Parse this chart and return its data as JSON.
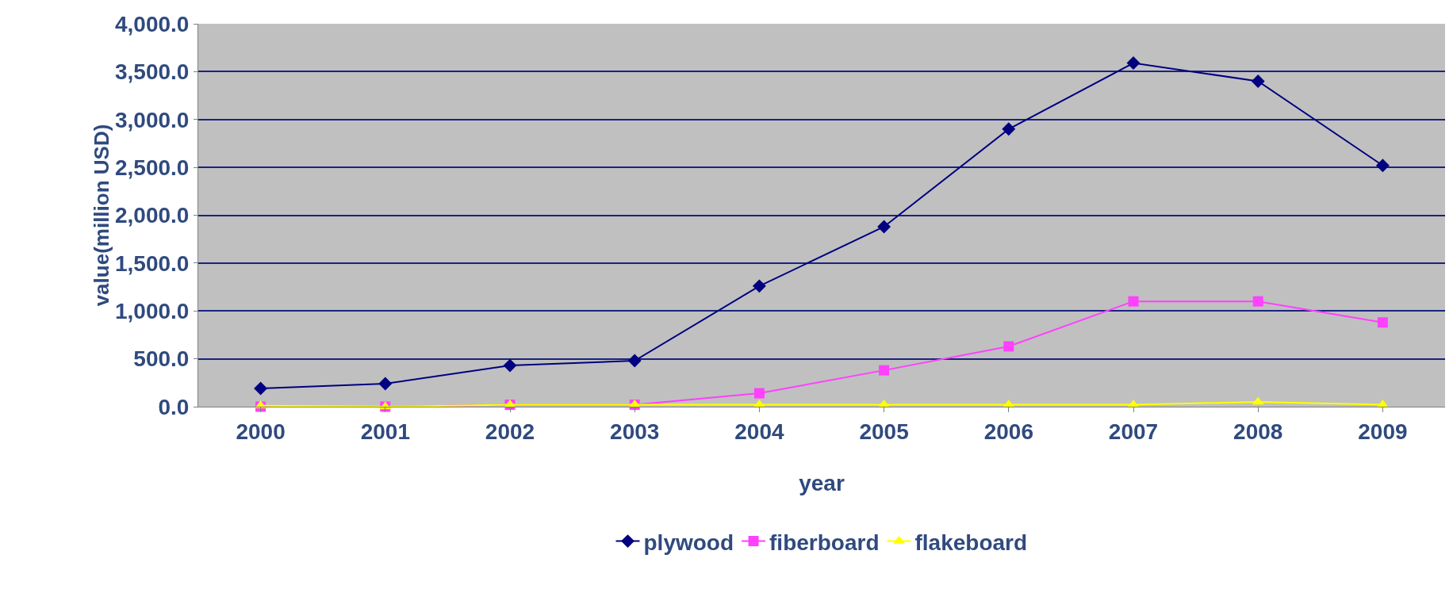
{
  "chart_data": {
    "type": "line",
    "xlabel": "year",
    "ylabel": "value(million USD)",
    "categories": [
      "2000",
      "2001",
      "2002",
      "2003",
      "2004",
      "2005",
      "2006",
      "2007",
      "2008",
      "2009"
    ],
    "series": [
      {
        "name": "plywood",
        "color": "#000080",
        "marker": "diamond",
        "values": [
          190,
          240,
          430,
          480,
          1260,
          1880,
          2900,
          3590,
          3400,
          2520
        ]
      },
      {
        "name": "fiberboard",
        "color": "#ff40ff",
        "marker": "square",
        "values": [
          0,
          0,
          20,
          20,
          140,
          380,
          630,
          1100,
          1100,
          880
        ]
      },
      {
        "name": "flakeboard",
        "color": "#ffff00",
        "marker": "triangle",
        "values": [
          10,
          0,
          20,
          20,
          20,
          20,
          20,
          20,
          50,
          20
        ]
      }
    ],
    "ylim": [
      0,
      4000
    ],
    "yticks": [
      {
        "value": 0,
        "label": "0.0"
      },
      {
        "value": 500,
        "label": "500.0"
      },
      {
        "value": 1000,
        "label": "1,000.0"
      },
      {
        "value": 1500,
        "label": "1,500.0"
      },
      {
        "value": 2000,
        "label": "2,000.0"
      },
      {
        "value": 2500,
        "label": "2,500.0"
      },
      {
        "value": 3000,
        "label": "3,000.0"
      },
      {
        "value": 3500,
        "label": "3,500.0"
      },
      {
        "value": 4000,
        "label": "4,000.0"
      }
    ],
    "grid": "y",
    "legend": "bottom",
    "line_style": "solid"
  }
}
